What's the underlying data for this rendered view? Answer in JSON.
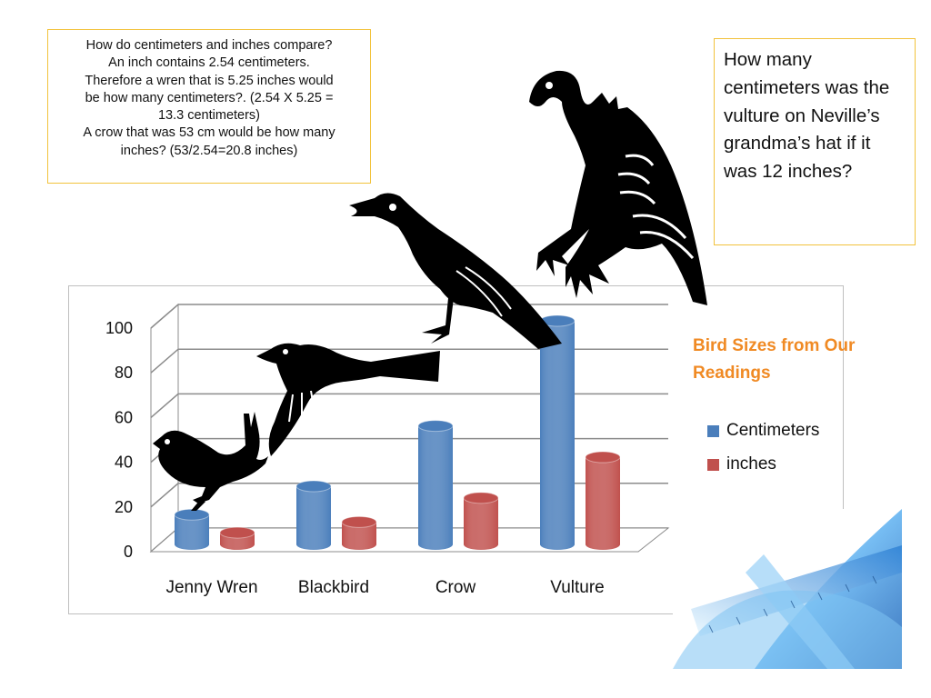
{
  "info_box": {
    "lines": [
      "How do centimeters and inches compare?",
      "An inch contains 2.54 centimeters.",
      "Therefore a wren that is 5.25 inches would",
      "be how many centimeters?.  (2.54 X 5.25 =",
      "13.3 centimeters)",
      "A crow that was 53 cm would be how many",
      "inches? (53/2.54=20.8 inches)"
    ]
  },
  "question_box": {
    "text": "How many centimeters was the vulture on Neville’s grandma’s hat if it was 12 inches?"
  },
  "chart_data": {
    "type": "bar",
    "title": "Bird Sizes from Our Readings",
    "categories": [
      "Jenny Wren",
      "Blackbird",
      "Crow",
      "Vulture"
    ],
    "series": [
      {
        "name": "Centimeters",
        "values": [
          13.3,
          26,
          53,
          100
        ],
        "color": "#4a7ebb"
      },
      {
        "name": "inches",
        "values": [
          5.25,
          10,
          20.8,
          39
        ],
        "color": "#c0504d"
      }
    ],
    "ylim": [
      0,
      100
    ],
    "yticks": [
      0,
      20,
      40,
      60,
      80,
      100
    ],
    "grid": true,
    "legend": "right",
    "style": "3d-cylinder"
  },
  "decorations": {
    "bird_icons": [
      "wren-icon",
      "blackbird-icon",
      "crow-icon",
      "vulture-icon"
    ],
    "corner_image": "rulers-protractor-image"
  }
}
